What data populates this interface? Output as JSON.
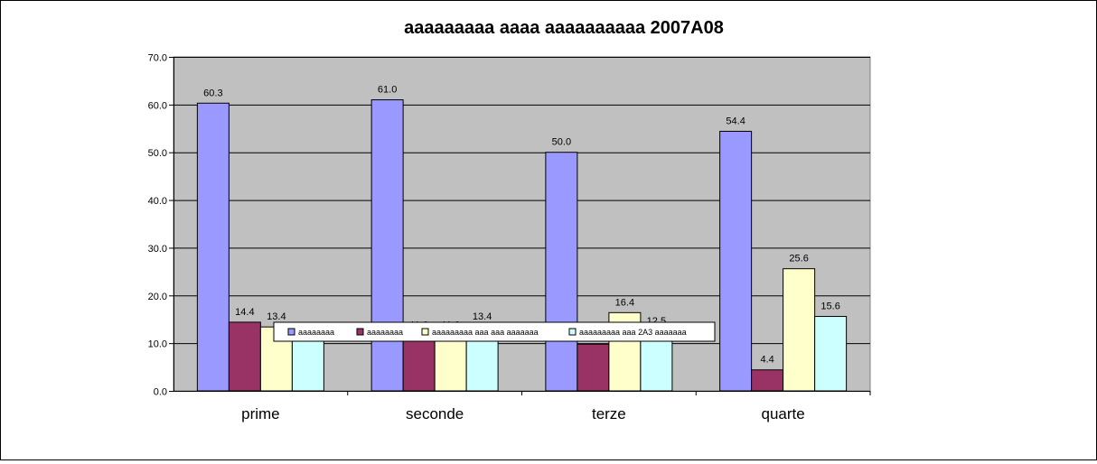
{
  "chart_data": {
    "type": "bar",
    "title": "aaaaaaaaa aaaa aaaaaaaaaa 2007A08",
    "xlabel": "",
    "ylabel": "",
    "categories": [
      "prime",
      "seconde",
      "terze",
      "quarte"
    ],
    "series": [
      {
        "name": "aaaaaaaa",
        "values": [
          60.3,
          61.0,
          50.0,
          54.4
        ],
        "color": "#9999ff"
      },
      {
        "name": "aaaaaaaa",
        "values": [
          14.4,
          11.6,
          9.8,
          4.4
        ],
        "color": "#993366"
      },
      {
        "name": "aaaaaaaaa aaa aaa aaaaaaa",
        "values": [
          13.4,
          11.6,
          16.4,
          25.6
        ],
        "color": "#ffffcc"
      },
      {
        "name": "aaaaaaaaa aaa 2A3 aaaaaaa",
        "values": [
          11.0,
          13.4,
          12.5,
          15.6
        ],
        "color": "#ccffff"
      }
    ],
    "ylim": [
      0,
      70
    ],
    "yticks": [
      "0.0",
      "10.0",
      "20.0",
      "30.0",
      "40.0",
      "50.0",
      "60.0",
      "70.0"
    ],
    "data_labels": [
      [
        "60.3",
        "61.0",
        "50.0",
        "54.4"
      ],
      [
        "14.4",
        "11.6",
        "",
        "4.4"
      ],
      [
        "13.4",
        "11.6",
        "16.4",
        "25.6"
      ],
      [
        "11.0",
        "13.4",
        "12.5",
        "15.6"
      ]
    ],
    "grid": true,
    "plot_background": "#c0c0c0",
    "legend_position": "center-bottom overlay"
  }
}
